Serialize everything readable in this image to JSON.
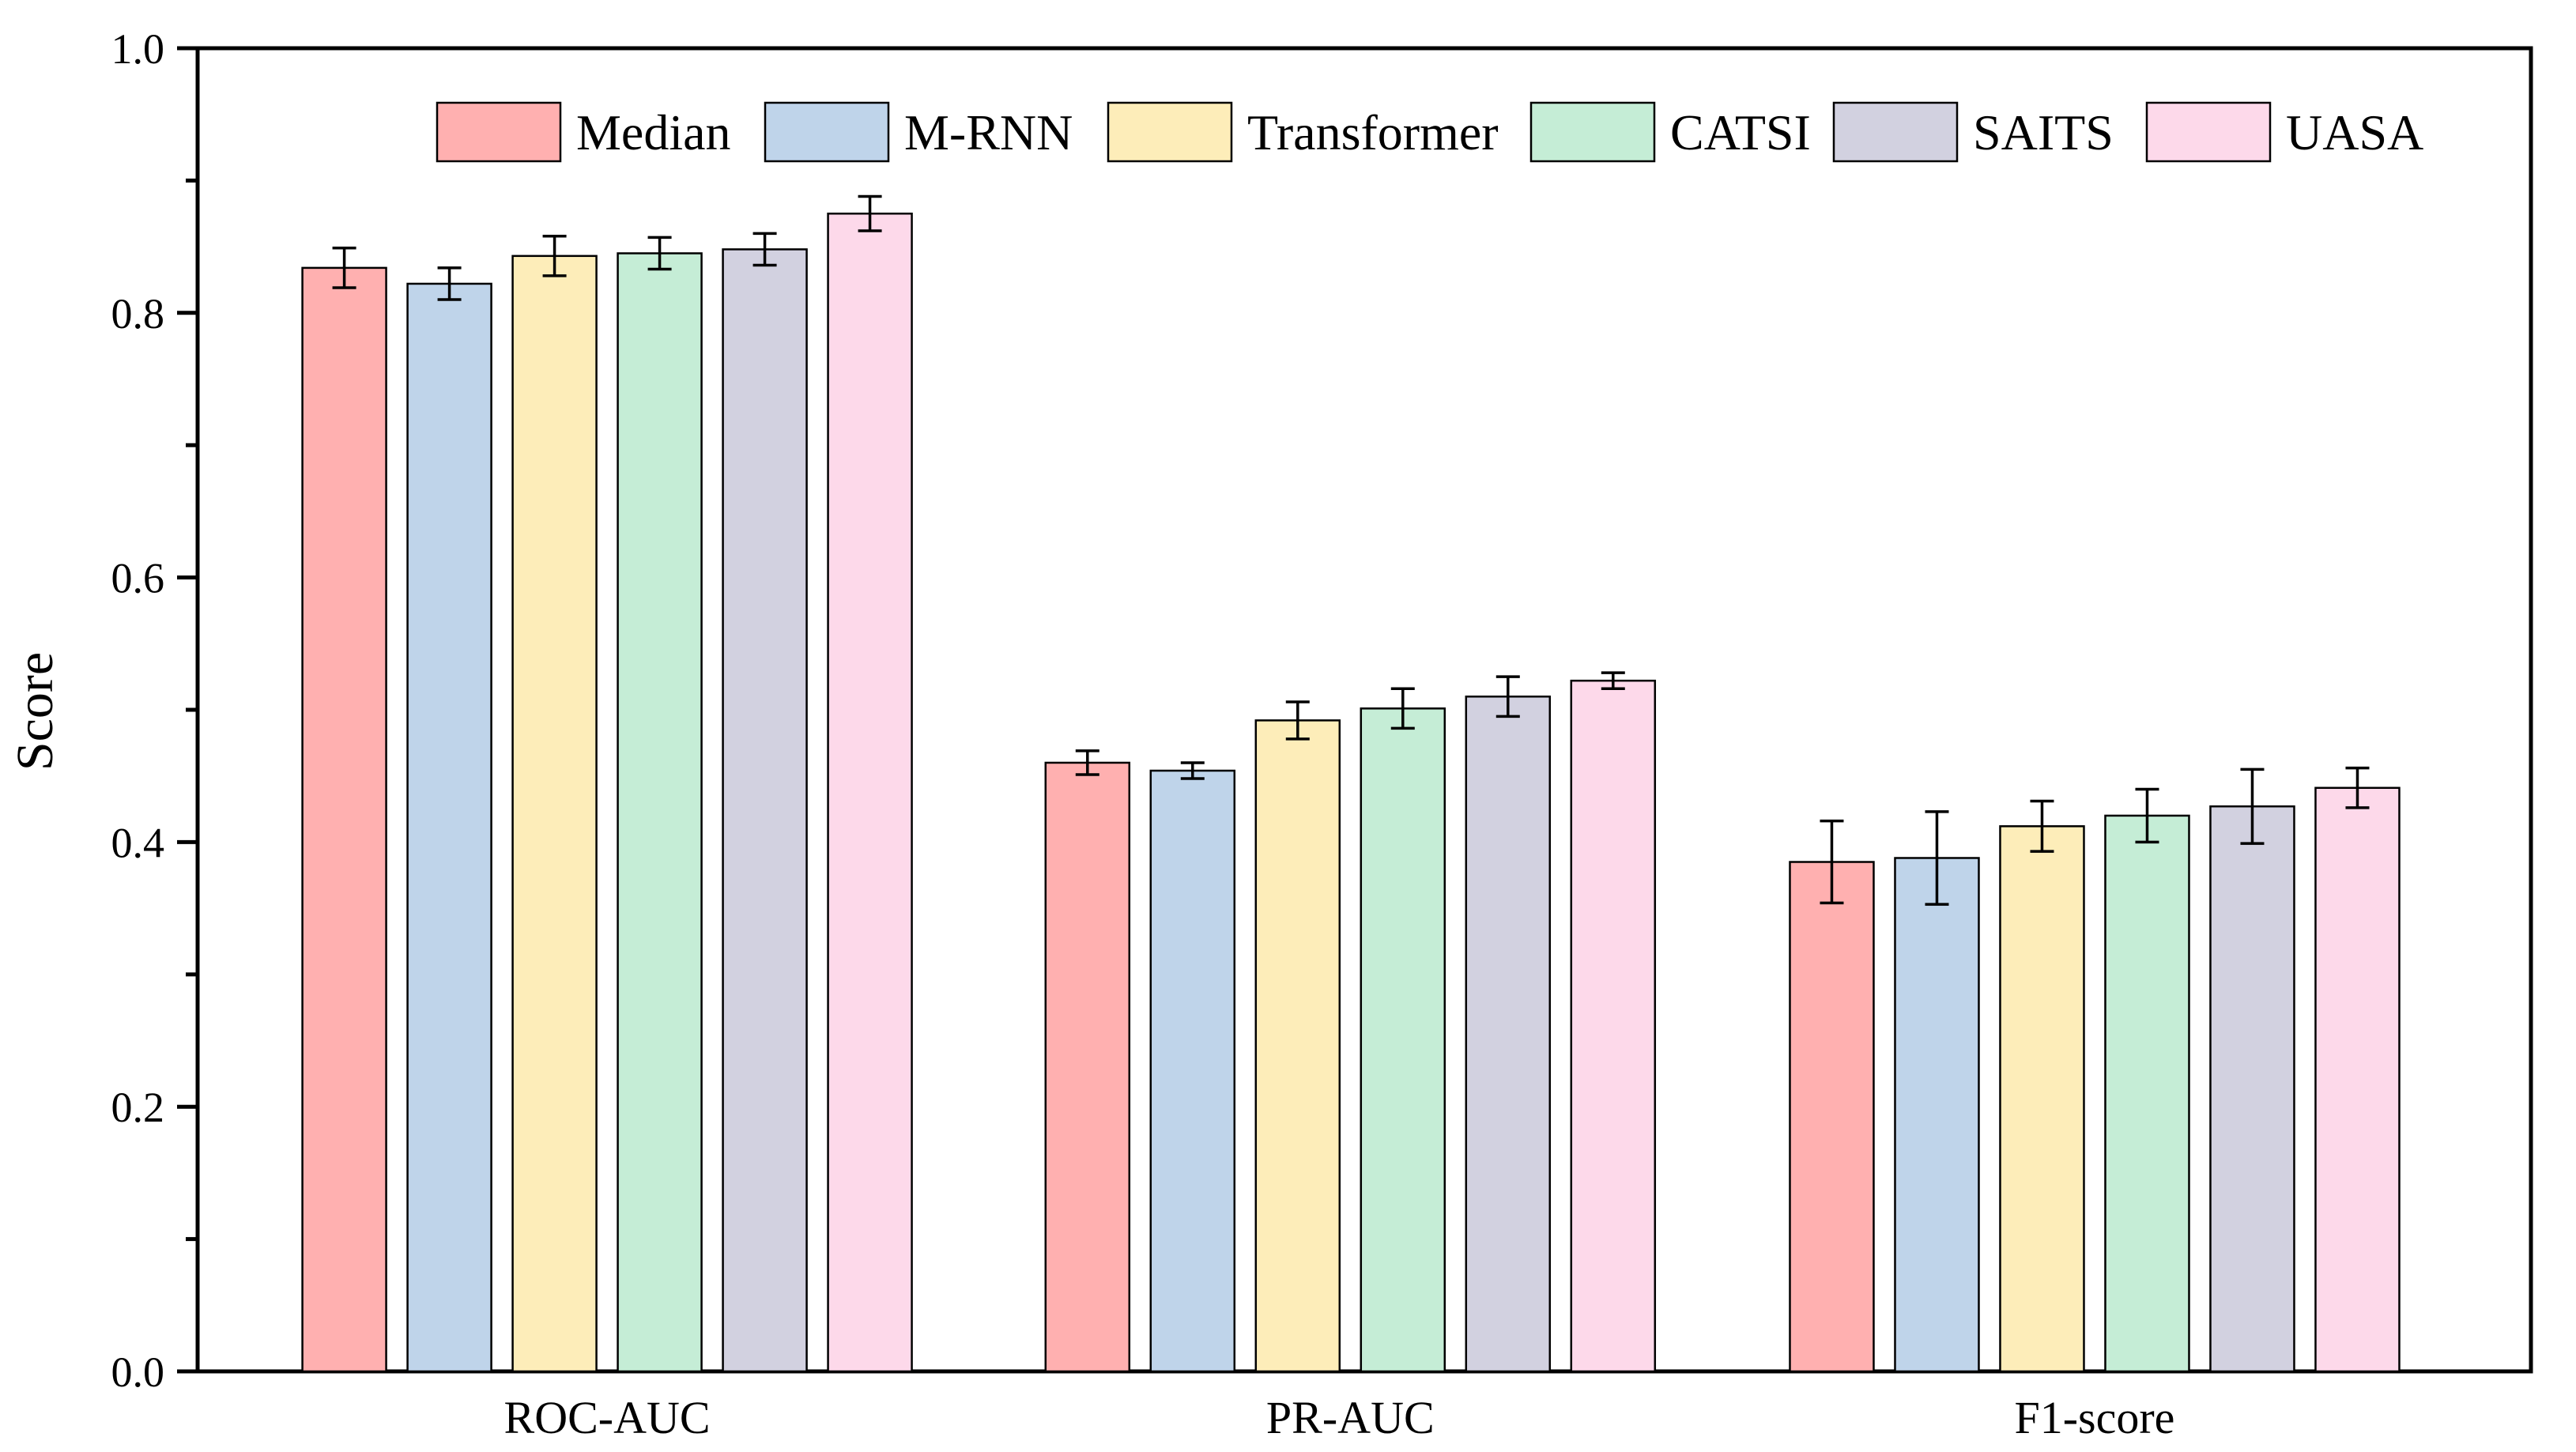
{
  "chart_data": {
    "type": "bar",
    "title": "",
    "xlabel": "",
    "ylabel": "Score",
    "ylim": [
      0,
      1.0
    ],
    "yticks": [
      "0.0",
      "0.2",
      "0.4",
      "0.6",
      "0.8",
      "1.0"
    ],
    "categories": [
      "ROC-AUC",
      "PR-AUC",
      "F1-score"
    ],
    "legend_position": "top",
    "series": [
      {
        "name": "Median",
        "color": "#FFB0B0",
        "values": [
          0.834,
          0.46,
          0.385
        ],
        "errors": [
          0.015,
          0.009,
          0.031
        ]
      },
      {
        "name": "M-RNN",
        "color": "#BFD4EA",
        "values": [
          0.822,
          0.454,
          0.388
        ],
        "errors": [
          0.012,
          0.006,
          0.035
        ]
      },
      {
        "name": "Transformer",
        "color": "#FDEDB9",
        "values": [
          0.843,
          0.492,
          0.412
        ],
        "errors": [
          0.015,
          0.014,
          0.019
        ]
      },
      {
        "name": "CATSI",
        "color": "#C5EDD6",
        "values": [
          0.845,
          0.501,
          0.42
        ],
        "errors": [
          0.012,
          0.015,
          0.02
        ]
      },
      {
        "name": "SAITS",
        "color": "#D2D1E0",
        "values": [
          0.848,
          0.51,
          0.427
        ],
        "errors": [
          0.012,
          0.015,
          0.028
        ]
      },
      {
        "name": "UASA",
        "color": "#FDD9EA",
        "values": [
          0.875,
          0.522,
          0.441
        ],
        "errors": [
          0.013,
          0.006,
          0.015
        ]
      }
    ]
  }
}
